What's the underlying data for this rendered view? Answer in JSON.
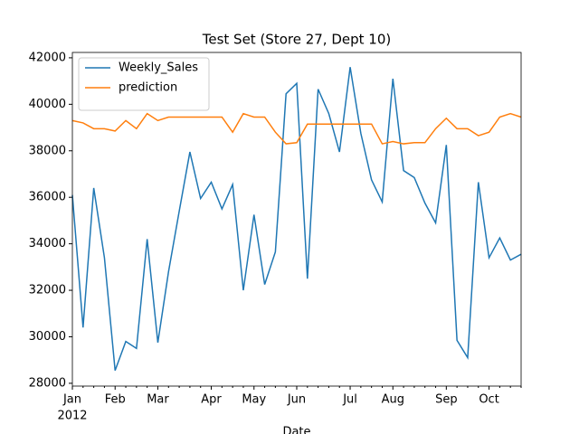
{
  "chart_data": {
    "type": "line",
    "title": "Test Set (Store 27, Dept 10)",
    "x_label": "Date",
    "categories": [
      "Jan",
      null,
      null,
      null,
      "Feb",
      null,
      null,
      null,
      "Mar",
      null,
      null,
      null,
      null,
      "Apr",
      null,
      null,
      null,
      "May",
      null,
      null,
      null,
      "Jun",
      null,
      null,
      null,
      null,
      "Jul",
      null,
      null,
      null,
      "Aug",
      null,
      null,
      null,
      null,
      "Sep",
      null,
      null,
      null,
      "Oct",
      null,
      null,
      null
    ],
    "x_sublabel": "2012",
    "series": [
      {
        "name": "Weekly_Sales",
        "color": "#1f77b4",
        "values": [
          36100,
          30400,
          36400,
          33400,
          28550,
          29800,
          29500,
          34200,
          29750,
          32800,
          35400,
          37950,
          35950,
          36650,
          35500,
          36550,
          32000,
          35250,
          32250,
          33650,
          40450,
          40900,
          32500,
          40650,
          39600,
          37950,
          41600,
          38750,
          36750,
          35800,
          41100,
          37150,
          36850,
          35750,
          34900,
          38250,
          29850,
          29100,
          36650,
          33400,
          34250,
          33300,
          33550
        ]
      },
      {
        "name": "prediction",
        "color": "#ff7f0e",
        "values": [
          39300,
          39200,
          38950,
          38950,
          38850,
          39300,
          38950,
          39600,
          39300,
          39450,
          39450,
          39450,
          39450,
          39450,
          39450,
          38800,
          39600,
          39450,
          39450,
          38800,
          38300,
          38350,
          39150,
          39150,
          39150,
          39150,
          39150,
          39150,
          39150,
          38300,
          38400,
          38300,
          38350,
          38350,
          38950,
          39400,
          38950,
          38950,
          38650,
          38800,
          39450,
          39600,
          39450
        ]
      }
    ],
    "ylim": [
      27880,
      42230
    ],
    "yticks": [
      28000,
      30000,
      32000,
      34000,
      36000,
      38000,
      40000,
      42000
    ],
    "legend": "upper left"
  }
}
